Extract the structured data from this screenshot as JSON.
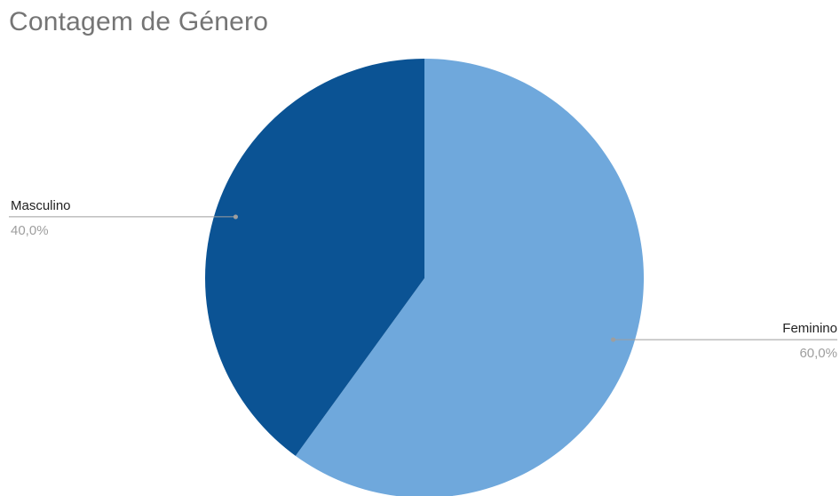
{
  "chart_data": {
    "type": "pie",
    "title": "Contagem de Género",
    "slices": [
      {
        "label": "Feminino",
        "value": 60,
        "value_label": "60,0%",
        "color": "#6fa8dc"
      },
      {
        "label": "Masculino",
        "value": 40,
        "value_label": "40,0%",
        "color": "#0b5394"
      }
    ],
    "start_angle_deg": 0,
    "direction": "clockwise",
    "leader_color": "#9e9e9e",
    "legend": "none"
  }
}
